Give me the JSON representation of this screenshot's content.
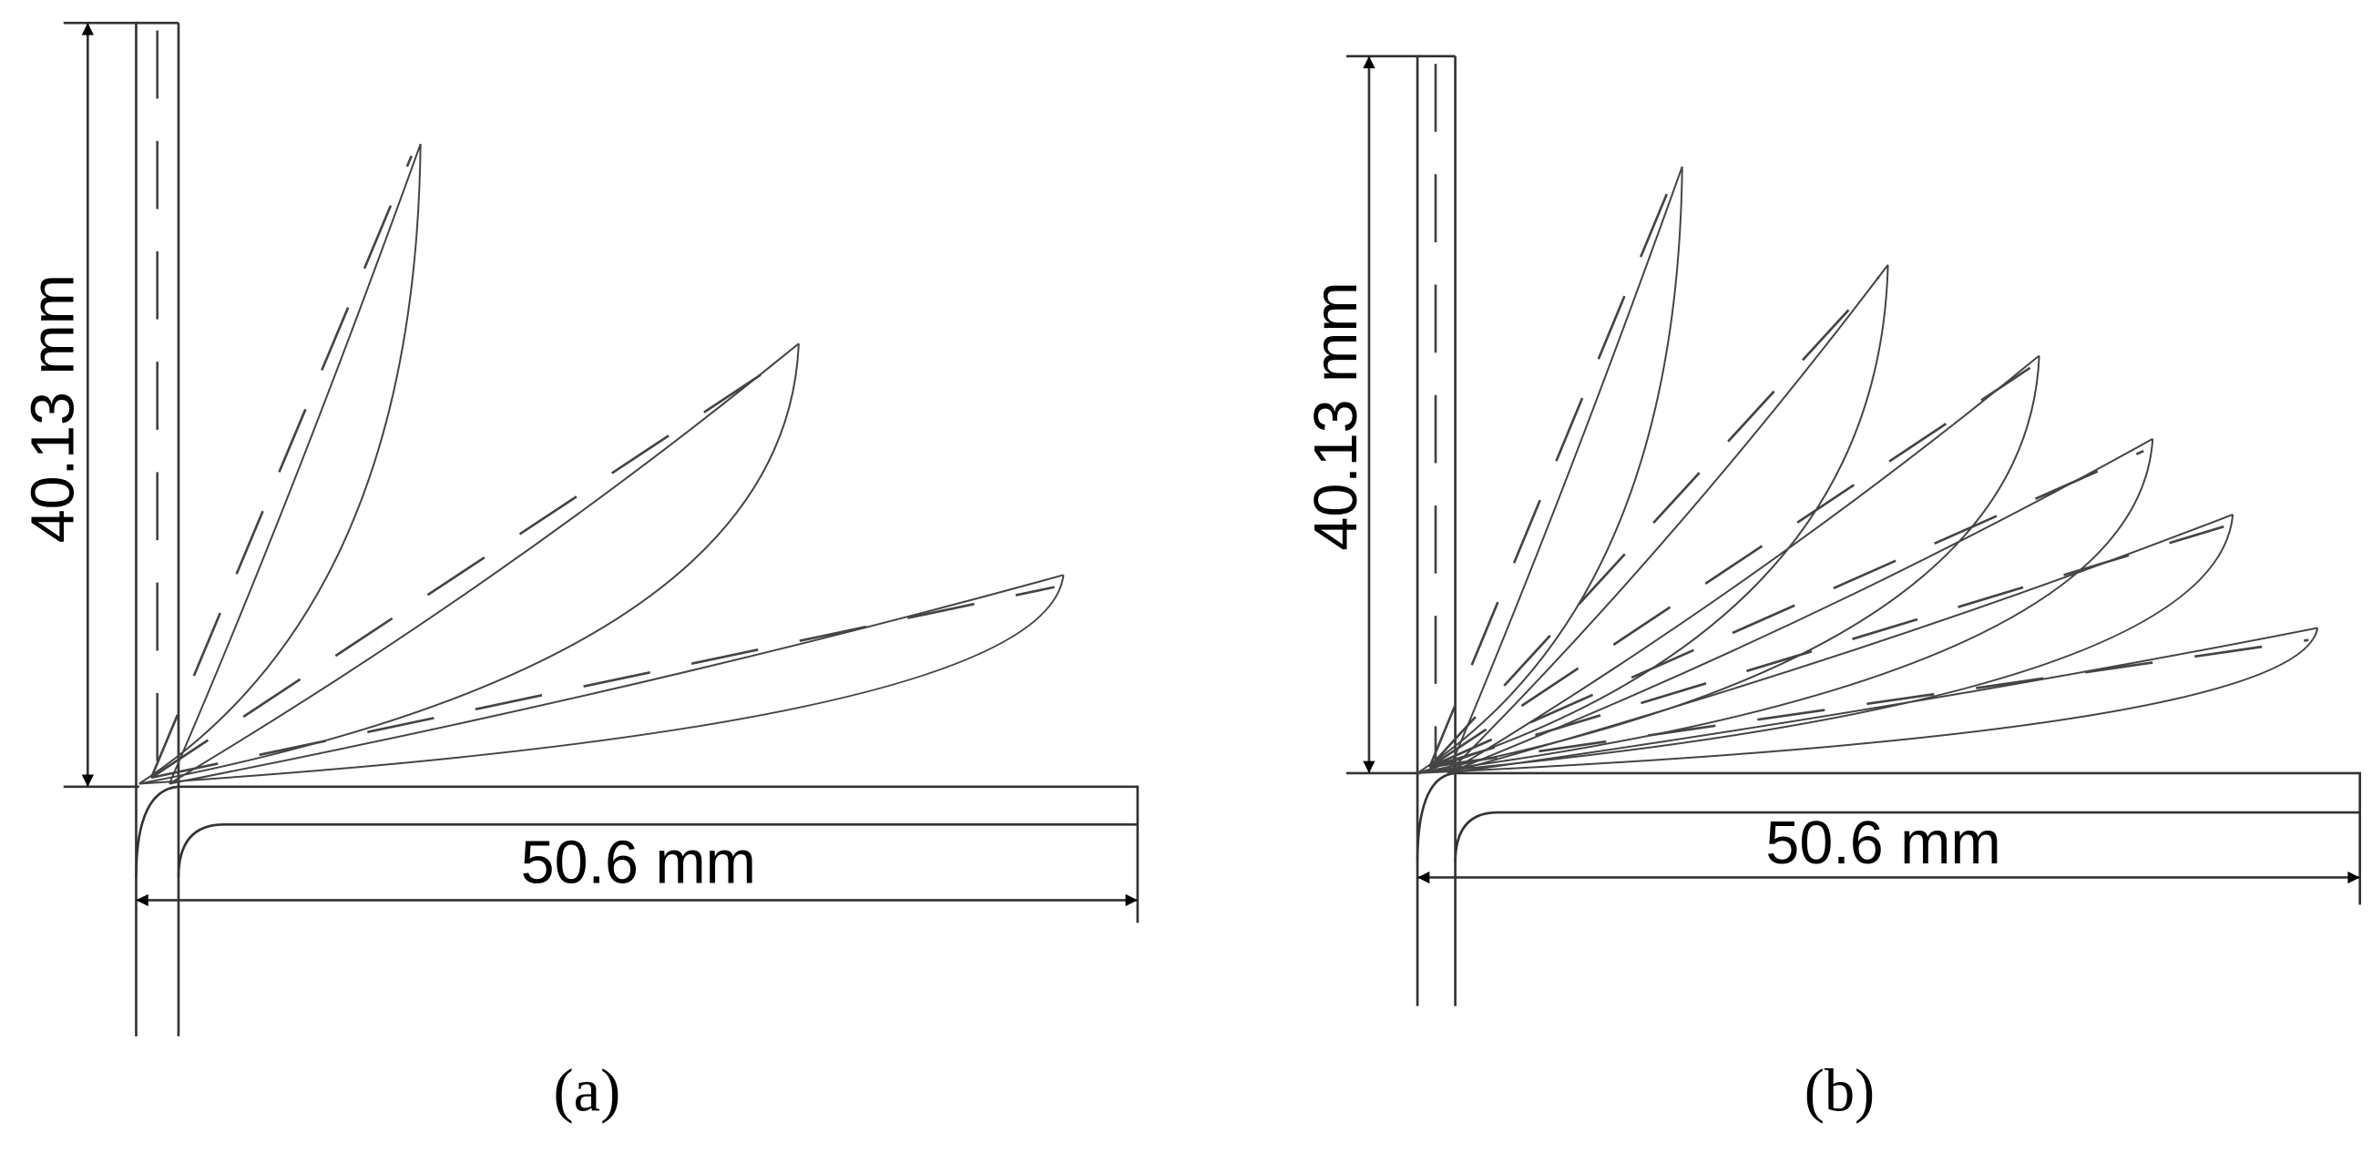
{
  "panels": [
    {
      "height_label": "40.13 mm",
      "width_label": "50.6 mm",
      "caption": "(a)"
    },
    {
      "height_label": "40.13 mm",
      "width_label": "50.6 mm",
      "caption": "(b)"
    }
  ]
}
